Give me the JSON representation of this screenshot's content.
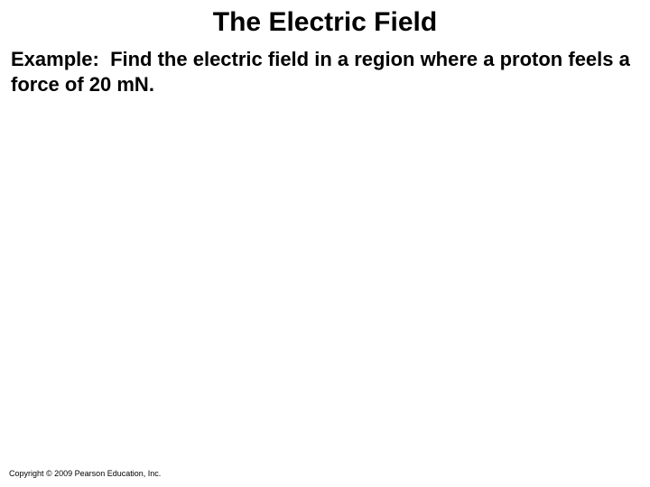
{
  "slide": {
    "title": "The Electric Field",
    "example_label": "Example:",
    "example_text": "Find the electric field in a region where a proton feels a force of 20 mN.",
    "copyright": "Copyright © 2009 Pearson Education, Inc."
  },
  "style": {
    "title_fontsize": 30,
    "body_fontsize": 22,
    "copyright_fontsize": 9,
    "background_color": "#ffffff",
    "text_color": "#000000"
  }
}
